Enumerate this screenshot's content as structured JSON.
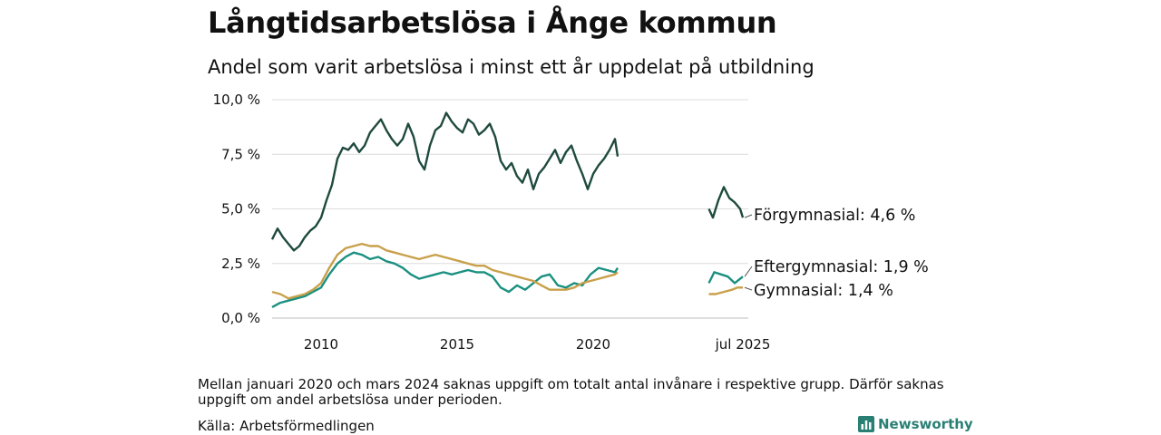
{
  "title": "Långtidsarbetslösa i Ånge kommun",
  "subtitle": "Andel som varit arbetslösa i minst ett år uppdelat på utbildning",
  "note": "Mellan januari 2020 och mars 2024 saknas uppgift om totalt antal invånare i respektive grupp. Därför saknas uppgift om andel arbetslösa under perioden.",
  "source": "Källa: Arbetsförmedlingen",
  "brand": {
    "name": "Newsworthy",
    "icon": "bar-chart-icon",
    "color": "#2a7f74"
  },
  "chart_data": {
    "type": "line",
    "y_ticks": [
      "0,0 %",
      "2,5 %",
      "5,0 %",
      "7,5 %",
      "10,0 %"
    ],
    "ylim": [
      0,
      10
    ],
    "x_ticks": [
      {
        "label": "2010",
        "x": 2010.0
      },
      {
        "label": "2015",
        "x": 2015.0
      },
      {
        "label": "2020",
        "x": 2020.0
      },
      {
        "label": "jul 2025",
        "x": 2025.5
      }
    ],
    "xlim": [
      2008.2,
      2025.7
    ],
    "grid": true,
    "series": [
      {
        "name": "Förgymnasial",
        "end_label": "Förgymnasial: 4,6 %",
        "color": "#1f4a3e",
        "segments": [
          [
            [
              2008.2,
              3.6
            ],
            [
              2008.4,
              4.1
            ],
            [
              2008.6,
              3.7
            ],
            [
              2008.8,
              3.4
            ],
            [
              2009.0,
              3.1
            ],
            [
              2009.2,
              3.3
            ],
            [
              2009.4,
              3.7
            ],
            [
              2009.6,
              4.0
            ],
            [
              2009.8,
              4.2
            ],
            [
              2010.0,
              4.6
            ],
            [
              2010.2,
              5.4
            ],
            [
              2010.4,
              6.1
            ],
            [
              2010.6,
              7.3
            ],
            [
              2010.8,
              7.8
            ],
            [
              2011.0,
              7.7
            ],
            [
              2011.2,
              8.0
            ],
            [
              2011.4,
              7.6
            ],
            [
              2011.6,
              7.9
            ],
            [
              2011.8,
              8.5
            ],
            [
              2012.0,
              8.8
            ],
            [
              2012.2,
              9.1
            ],
            [
              2012.4,
              8.6
            ],
            [
              2012.6,
              8.2
            ],
            [
              2012.8,
              7.9
            ],
            [
              2013.0,
              8.2
            ],
            [
              2013.2,
              8.9
            ],
            [
              2013.4,
              8.3
            ],
            [
              2013.6,
              7.2
            ],
            [
              2013.8,
              6.8
            ],
            [
              2014.0,
              7.9
            ],
            [
              2014.2,
              8.6
            ],
            [
              2014.4,
              8.8
            ],
            [
              2014.6,
              9.4
            ],
            [
              2014.8,
              9.0
            ],
            [
              2015.0,
              8.7
            ],
            [
              2015.2,
              8.5
            ],
            [
              2015.4,
              9.1
            ],
            [
              2015.6,
              8.9
            ],
            [
              2015.8,
              8.4
            ],
            [
              2016.0,
              8.6
            ],
            [
              2016.2,
              8.9
            ],
            [
              2016.4,
              8.3
            ],
            [
              2016.6,
              7.2
            ],
            [
              2016.8,
              6.8
            ],
            [
              2017.0,
              7.1
            ],
            [
              2017.2,
              6.5
            ],
            [
              2017.4,
              6.2
            ],
            [
              2017.6,
              6.8
            ],
            [
              2017.8,
              5.9
            ],
            [
              2018.0,
              6.6
            ],
            [
              2018.2,
              6.9
            ],
            [
              2018.4,
              7.3
            ],
            [
              2018.6,
              7.7
            ],
            [
              2018.8,
              7.1
            ],
            [
              2019.0,
              7.6
            ],
            [
              2019.2,
              7.9
            ],
            [
              2019.4,
              7.2
            ],
            [
              2019.6,
              6.6
            ],
            [
              2019.8,
              5.9
            ],
            [
              2020.0,
              6.6
            ],
            [
              2020.2,
              7.0
            ],
            [
              2020.4,
              7.3
            ],
            [
              2020.6,
              7.7
            ],
            [
              2020.8,
              8.2
            ],
            [
              2020.9,
              7.4
            ]
          ],
          [
            [
              2024.25,
              5.0
            ],
            [
              2024.4,
              4.6
            ],
            [
              2024.6,
              5.4
            ],
            [
              2024.8,
              6.0
            ],
            [
              2025.0,
              5.5
            ],
            [
              2025.2,
              5.3
            ],
            [
              2025.4,
              5.0
            ],
            [
              2025.5,
              4.6
            ]
          ]
        ]
      },
      {
        "name": "Eftergymnasial",
        "end_label": "Eftergymnasial: 1,9 %",
        "color": "#1a9080",
        "segments": [
          [
            [
              2008.2,
              0.5
            ],
            [
              2008.5,
              0.7
            ],
            [
              2008.8,
              0.8
            ],
            [
              2009.1,
              0.9
            ],
            [
              2009.4,
              1.0
            ],
            [
              2009.7,
              1.2
            ],
            [
              2010.0,
              1.4
            ],
            [
              2010.3,
              2.0
            ],
            [
              2010.6,
              2.5
            ],
            [
              2010.9,
              2.8
            ],
            [
              2011.2,
              3.0
            ],
            [
              2011.5,
              2.9
            ],
            [
              2011.8,
              2.7
            ],
            [
              2012.1,
              2.8
            ],
            [
              2012.4,
              2.6
            ],
            [
              2012.7,
              2.5
            ],
            [
              2013.0,
              2.3
            ],
            [
              2013.3,
              2.0
            ],
            [
              2013.6,
              1.8
            ],
            [
              2013.9,
              1.9
            ],
            [
              2014.2,
              2.0
            ],
            [
              2014.5,
              2.1
            ],
            [
              2014.8,
              2.0
            ],
            [
              2015.1,
              2.1
            ],
            [
              2015.4,
              2.2
            ],
            [
              2015.7,
              2.1
            ],
            [
              2016.0,
              2.1
            ],
            [
              2016.3,
              1.9
            ],
            [
              2016.6,
              1.4
            ],
            [
              2016.9,
              1.2
            ],
            [
              2017.2,
              1.5
            ],
            [
              2017.5,
              1.3
            ],
            [
              2017.8,
              1.6
            ],
            [
              2018.1,
              1.9
            ],
            [
              2018.4,
              2.0
            ],
            [
              2018.7,
              1.5
            ],
            [
              2019.0,
              1.4
            ],
            [
              2019.3,
              1.6
            ],
            [
              2019.6,
              1.5
            ],
            [
              2019.9,
              2.0
            ],
            [
              2020.2,
              2.3
            ],
            [
              2020.5,
              2.2
            ],
            [
              2020.8,
              2.1
            ],
            [
              2020.9,
              2.3
            ]
          ],
          [
            [
              2024.25,
              1.6
            ],
            [
              2024.45,
              2.1
            ],
            [
              2024.7,
              2.0
            ],
            [
              2024.95,
              1.9
            ],
            [
              2025.2,
              1.6
            ],
            [
              2025.5,
              1.9
            ]
          ]
        ]
      },
      {
        "name": "Gymnasial",
        "end_label": "Gymnasial: 1,4 %",
        "color": "#c8a04a",
        "segments": [
          [
            [
              2008.2,
              1.2
            ],
            [
              2008.5,
              1.1
            ],
            [
              2008.8,
              0.9
            ],
            [
              2009.1,
              1.0
            ],
            [
              2009.4,
              1.1
            ],
            [
              2009.7,
              1.3
            ],
            [
              2010.0,
              1.6
            ],
            [
              2010.3,
              2.3
            ],
            [
              2010.6,
              2.9
            ],
            [
              2010.9,
              3.2
            ],
            [
              2011.2,
              3.3
            ],
            [
              2011.5,
              3.4
            ],
            [
              2011.8,
              3.3
            ],
            [
              2012.1,
              3.3
            ],
            [
              2012.4,
              3.1
            ],
            [
              2012.7,
              3.0
            ],
            [
              2013.0,
              2.9
            ],
            [
              2013.3,
              2.8
            ],
            [
              2013.6,
              2.7
            ],
            [
              2013.9,
              2.8
            ],
            [
              2014.2,
              2.9
            ],
            [
              2014.5,
              2.8
            ],
            [
              2014.8,
              2.7
            ],
            [
              2015.1,
              2.6
            ],
            [
              2015.4,
              2.5
            ],
            [
              2015.7,
              2.4
            ],
            [
              2016.0,
              2.4
            ],
            [
              2016.3,
              2.2
            ],
            [
              2016.6,
              2.1
            ],
            [
              2016.9,
              2.0
            ],
            [
              2017.2,
              1.9
            ],
            [
              2017.5,
              1.8
            ],
            [
              2017.8,
              1.7
            ],
            [
              2018.1,
              1.5
            ],
            [
              2018.4,
              1.3
            ],
            [
              2018.7,
              1.3
            ],
            [
              2019.0,
              1.3
            ],
            [
              2019.3,
              1.4
            ],
            [
              2019.6,
              1.6
            ],
            [
              2019.9,
              1.7
            ],
            [
              2020.2,
              1.8
            ],
            [
              2020.5,
              1.9
            ],
            [
              2020.8,
              2.0
            ],
            [
              2020.9,
              2.1
            ]
          ],
          [
            [
              2024.25,
              1.1
            ],
            [
              2024.5,
              1.1
            ],
            [
              2024.8,
              1.2
            ],
            [
              2025.1,
              1.3
            ],
            [
              2025.3,
              1.4
            ],
            [
              2025.5,
              1.4
            ]
          ]
        ]
      }
    ]
  }
}
